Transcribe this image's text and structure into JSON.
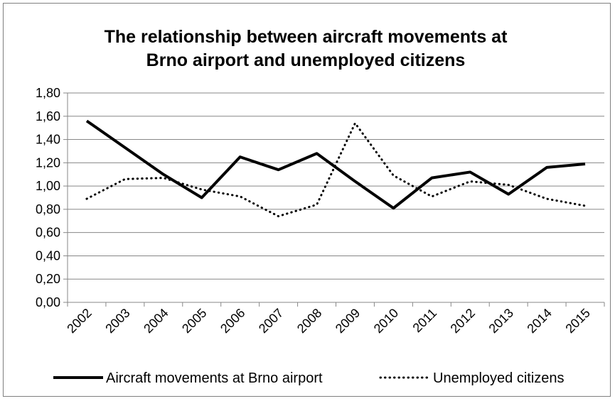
{
  "chart_data": {
    "type": "line",
    "title": [
      "The relationship between aircraft movements at",
      "Brno airport and unemployed citizens"
    ],
    "xlabel": "",
    "ylabel": "",
    "categories": [
      "2002",
      "2003",
      "2004",
      "2005",
      "2006",
      "2007",
      "2008",
      "2009",
      "2010",
      "2011",
      "2012",
      "2013",
      "2014",
      "2015"
    ],
    "ylim": [
      0,
      1.8
    ],
    "ytick_values": [
      0,
      0.2,
      0.4,
      0.6,
      0.8,
      1.0,
      1.2,
      1.4,
      1.6,
      1.8
    ],
    "ytick_labels": [
      "0,00",
      "0,20",
      "0,40",
      "0,60",
      "0,80",
      "1,00",
      "1,20",
      "1,40",
      "1,60",
      "1,80"
    ],
    "grid": "horizontal",
    "legend_position": "bottom",
    "series": [
      {
        "name": "Aircraft movements at Brno airport",
        "values": [
          1.56,
          1.33,
          1.1,
          0.9,
          1.25,
          1.14,
          1.28,
          1.04,
          0.81,
          1.07,
          1.12,
          0.93,
          1.16,
          1.19
        ],
        "color": "#000000",
        "style": "solid"
      },
      {
        "name": "Unemployed citizens",
        "values": [
          0.89,
          1.06,
          1.07,
          0.97,
          0.91,
          0.74,
          0.84,
          1.54,
          1.09,
          0.91,
          1.04,
          1.01,
          0.89,
          0.83
        ],
        "color": "#000000",
        "style": "dotted"
      }
    ]
  }
}
